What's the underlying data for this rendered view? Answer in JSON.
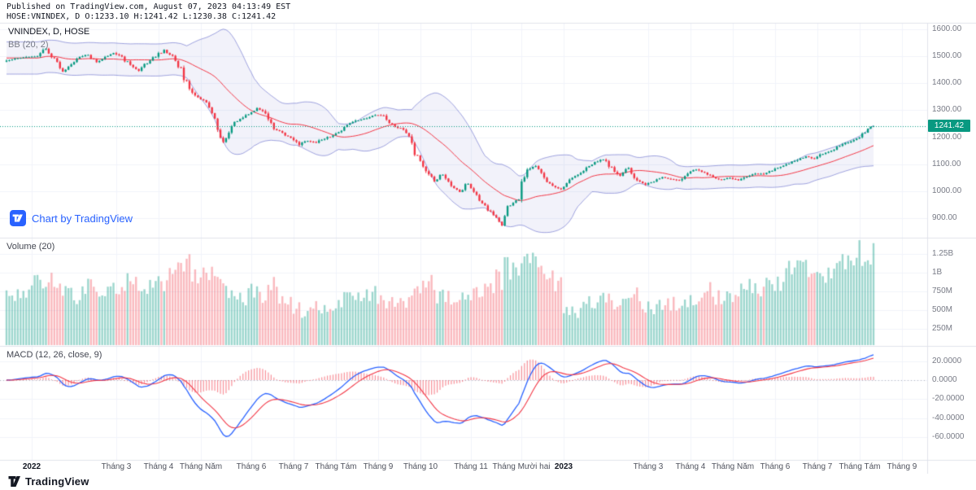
{
  "header": {
    "line1": "Published on TradingView.com, August 07, 2023 04:13:49 EST",
    "line2": "HOSE:VNINDEX, D O:1233.10 H:1241.42 L:1230.38 C:1241.42"
  },
  "price_panel": {
    "legend_symbol": "VNINDEX, D, HOSE",
    "legend_bb": "BB (20, 2)",
    "watermark": "Chart by TradingView",
    "last_price": "1241.42"
  },
  "volume_panel": {
    "legend": "Volume (20)"
  },
  "macd_panel": {
    "legend": "MACD (12, 26, close, 9)"
  },
  "footer": {
    "brand": "TradingView"
  },
  "price_axis": [
    {
      "label": "1600.00",
      "value": 1600
    },
    {
      "label": "1500.00",
      "value": 1500
    },
    {
      "label": "1400.00",
      "value": 1400
    },
    {
      "label": "1300.00",
      "value": 1300
    },
    {
      "label": "1200.00",
      "value": 1200
    },
    {
      "label": "1100.00",
      "value": 1100
    },
    {
      "label": "1000.00",
      "value": 1000
    },
    {
      "label": "900.00",
      "value": 900
    }
  ],
  "volume_axis": [
    {
      "label": "1.25B",
      "value_millions": 1250
    },
    {
      "label": "1B",
      "value_millions": 1000
    },
    {
      "label": "750M",
      "value_millions": 750
    },
    {
      "label": "500M",
      "value_millions": 500
    },
    {
      "label": "250M",
      "value_millions": 250
    }
  ],
  "macd_axis": [
    {
      "label": "20.0000",
      "value": 20
    },
    {
      "label": "0.0000",
      "value": 0
    },
    {
      "label": "-20.0000",
      "value": -20
    },
    {
      "label": "-40.0000",
      "value": -40
    },
    {
      "label": "-60.0000",
      "value": -60
    }
  ],
  "colors": {
    "up": "#089981",
    "down": "#f23645",
    "vol_up": "rgba(8,153,129,0.40)",
    "vol_down": "rgba(242,54,69,0.35)",
    "bb_band": "rgba(83,91,197,0.55)",
    "bb_fill": "rgba(83,91,197,0.08)",
    "bb_basis": "#f23645",
    "macd_line": "#2962ff",
    "signal_line": "#f23645",
    "hist": "rgba(242,54,69,0.55)",
    "badge_bg": "#089981",
    "watermark": "#2962ff",
    "grid": "#f0f3fa",
    "divider": "#e0e3eb",
    "axis_text": "#787b86",
    "zero_line": "#b2b5be"
  },
  "chart_data": {
    "type": "candlestick",
    "symbol": "VNINDEX",
    "exchange": "HOSE",
    "interval": "D",
    "last_ohlc": {
      "open": 1233.1,
      "high": 1241.42,
      "low": 1230.38,
      "close": 1241.42
    },
    "indicators": {
      "bollinger_period": 20,
      "bollinger_stddev": 2,
      "volume_ma": 20,
      "macd_fast": 12,
      "macd_slow": 26,
      "macd_source": "close",
      "macd_signal": 9
    },
    "price_axis_range": [
      870,
      1620
    ],
    "volume_axis_range_millions": [
      0,
      1500
    ],
    "macd_axis_range": [
      -72,
      25
    ],
    "closes": [
      1488,
      1494,
      1498,
      1500,
      1528,
      1493,
      1443,
      1470,
      1498,
      1505,
      1478,
      1498,
      1512,
      1499,
      1468,
      1446,
      1473,
      1498,
      1524,
      1502,
      1458,
      1379,
      1348,
      1329,
      1269,
      1182,
      1241,
      1268,
      1285,
      1308,
      1288,
      1230,
      1217,
      1198,
      1171,
      1186,
      1179,
      1194,
      1207,
      1224,
      1252,
      1262,
      1270,
      1282,
      1280,
      1248,
      1234,
      1203,
      1132,
      1074,
      1036,
      1061,
      1019,
      997,
      1027,
      986,
      947,
      911,
      873,
      947,
      969,
      1080,
      1093,
      1050,
      1020,
      1007,
      1043,
      1061,
      1088,
      1108,
      1117,
      1089,
      1057,
      1086,
      1040,
      1024,
      1035,
      1052,
      1045,
      1040,
      1065,
      1080,
      1069,
      1052,
      1042,
      1049,
      1040,
      1054,
      1065,
      1063,
      1075,
      1090,
      1102,
      1115,
      1129,
      1120,
      1138,
      1150,
      1168,
      1180,
      1195,
      1217,
      1241.42
    ],
    "volumes_millions": [
      750,
      700,
      800,
      850,
      780,
      900,
      820,
      760,
      700,
      820,
      880,
      790,
      750,
      820,
      900,
      860,
      780,
      820,
      900,
      980,
      1050,
      1150,
      980,
      920,
      1020,
      870,
      780,
      720,
      680,
      750,
      680,
      820,
      700,
      620,
      520,
      480,
      560,
      500,
      540,
      580,
      640,
      700,
      660,
      720,
      680,
      600,
      560,
      620,
      700,
      780,
      820,
      700,
      640,
      720,
      680,
      720,
      780,
      820,
      900,
      1100,
      980,
      1350,
      1250,
      1050,
      900,
      820,
      520,
      480,
      560,
      600,
      640,
      620,
      580,
      640,
      700,
      560,
      520,
      560,
      600,
      580,
      640,
      660,
      700,
      740,
      680,
      720,
      680,
      740,
      780,
      820,
      860,
      900,
      980,
      1050,
      1100,
      1020,
      980,
      1050,
      1100,
      1150,
      1200,
      1250,
      1320
    ],
    "months": [
      {
        "label": "2022",
        "i": 3,
        "year": true
      },
      {
        "label": "Tháng 3",
        "i": 13
      },
      {
        "label": "Tháng 4",
        "i": 18
      },
      {
        "label": "Tháng Năm",
        "i": 23
      },
      {
        "label": "Tháng 6",
        "i": 29
      },
      {
        "label": "Tháng 7",
        "i": 34
      },
      {
        "label": "Tháng Tám",
        "i": 39
      },
      {
        "label": "Tháng 9",
        "i": 44
      },
      {
        "label": "Tháng 10",
        "i": 49
      },
      {
        "label": "Tháng 11",
        "i": 55
      },
      {
        "label": "Tháng Mười hai",
        "i": 61
      },
      {
        "label": "2023",
        "i": 66,
        "year": true
      },
      {
        "label": "Tháng 3",
        "i": 76
      },
      {
        "label": "Tháng 4",
        "i": 81
      },
      {
        "label": "Tháng Năm",
        "i": 86
      },
      {
        "label": "Tháng 6",
        "i": 91
      },
      {
        "label": "Tháng 7",
        "i": 96
      },
      {
        "label": "Tháng Tám",
        "i": 101
      },
      {
        "label": "Tháng 9",
        "i": 106
      }
    ]
  }
}
